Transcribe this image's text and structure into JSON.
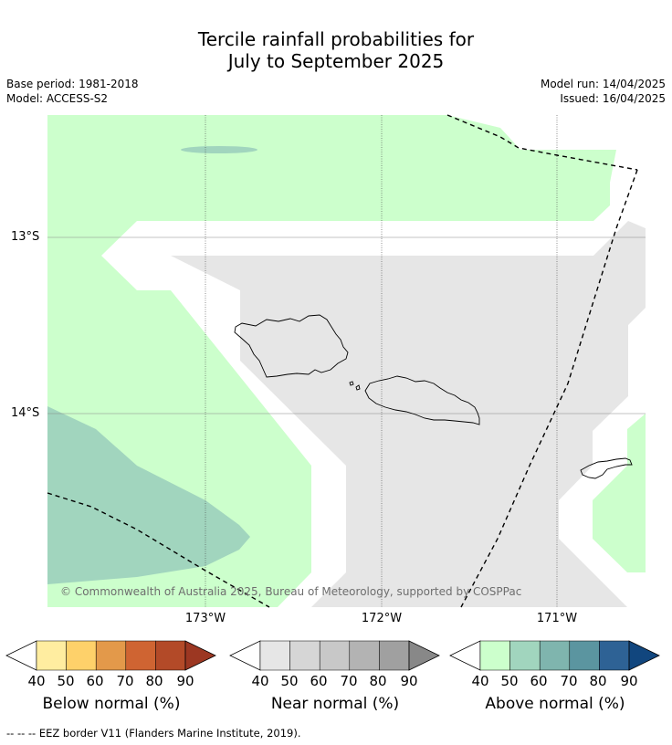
{
  "title": {
    "line1": "Tercile rainfall probabilities for",
    "line2": "July to September 2025"
  },
  "meta": {
    "base_period": "Base period: 1981-2018",
    "model": "Model: ACCESS-S2",
    "model_run": "Model run: 14/04/2025",
    "issued": "Issued: 16/04/2025"
  },
  "map": {
    "lon_labels": [
      "173°W",
      "172°W",
      "171°W"
    ],
    "lat_labels": [
      "13°S",
      "14°S"
    ],
    "copyright": "© Commonwealth of Australia 2025, Bureau of Meteorology, supported by COSPPac",
    "colors": {
      "above_40_50": "#ccffcc",
      "above_50_60": "#a1d5be",
      "near_40_50": "#e6e6e6",
      "eez_line": "#000000"
    }
  },
  "colorbars": [
    {
      "label": "Below normal (%)",
      "ticks": [
        "40",
        "50",
        "60",
        "70",
        "80",
        "90"
      ],
      "colors": [
        "#ffffff",
        "#ffeda0",
        "#fed16a",
        "#e3994a",
        "#cf6432",
        "#b34a28",
        "#9c3722"
      ]
    },
    {
      "label": "Near normal (%)",
      "ticks": [
        "40",
        "50",
        "60",
        "70",
        "80",
        "90"
      ],
      "colors": [
        "#ffffff",
        "#e6e6e6",
        "#d6d6d6",
        "#c8c8c8",
        "#b3b3b3",
        "#a0a0a0",
        "#888888"
      ]
    },
    {
      "label": "Above normal (%)",
      "ticks": [
        "40",
        "50",
        "60",
        "70",
        "80",
        "90"
      ],
      "colors": [
        "#ffffff",
        "#ccffcc",
        "#a1d5be",
        "#7fb5ae",
        "#5b95a0",
        "#2e6295",
        "#11467e"
      ]
    }
  ],
  "footnote": "--  --  -- EEZ border V11 (Flanders Marine Institute, 2019)."
}
